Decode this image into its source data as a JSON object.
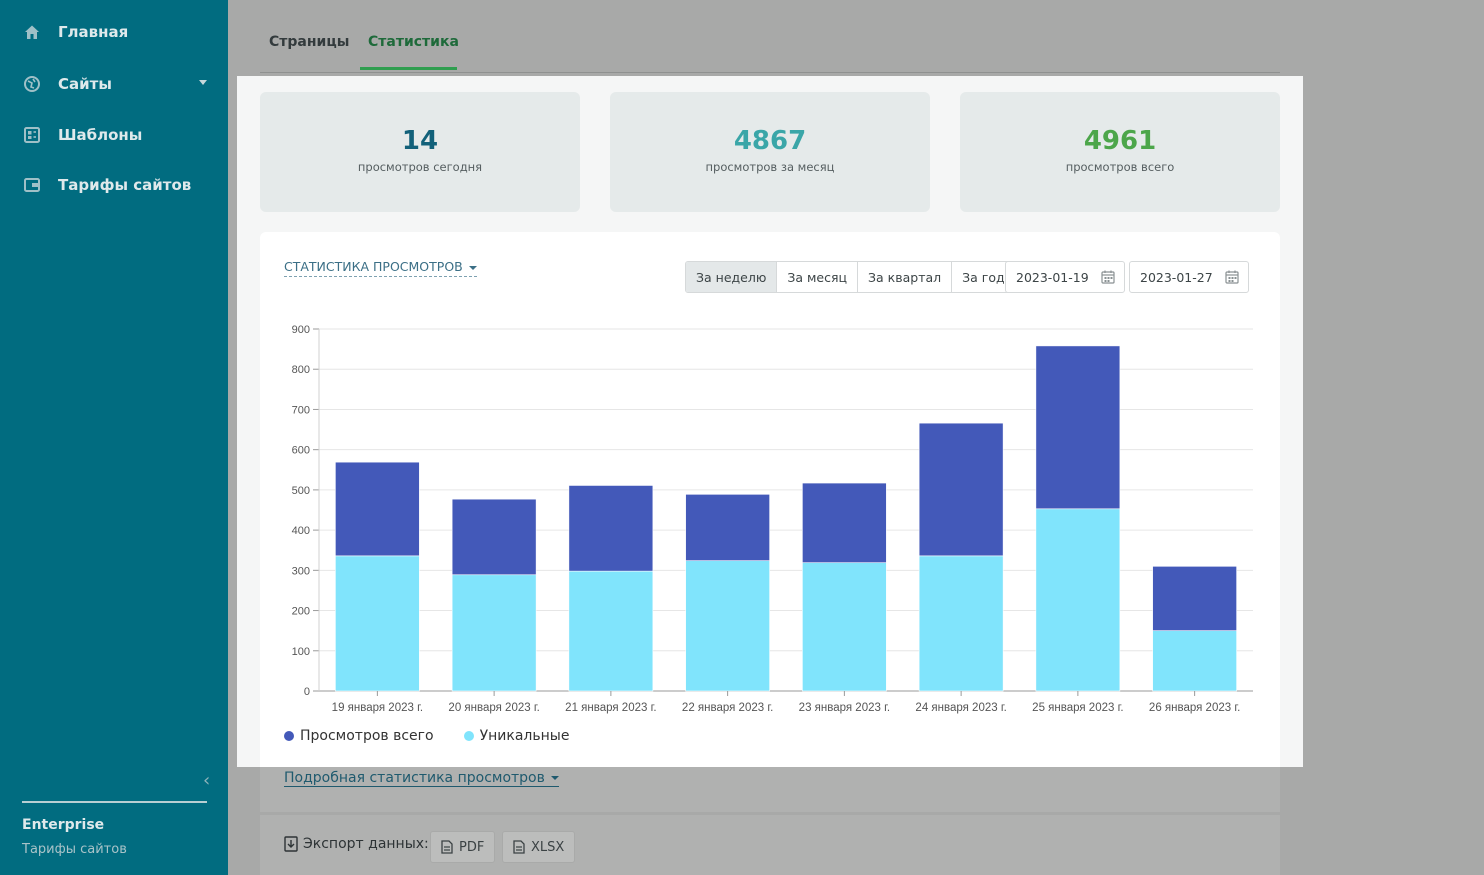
{
  "sidebar": {
    "items": [
      {
        "label": "Главная",
        "icon": "home-icon"
      },
      {
        "label": "Сайты",
        "icon": "globe-icon"
      },
      {
        "label": "Шаблоны",
        "icon": "template-icon"
      },
      {
        "label": "Тарифы сайтов",
        "icon": "wallet-icon"
      }
    ],
    "plan_name": "Enterprise",
    "plan_link": "Тарифы сайтов"
  },
  "tabs": [
    {
      "label": "Страницы",
      "active": false
    },
    {
      "label": "Статистика",
      "active": true
    }
  ],
  "stats": [
    {
      "value": "14",
      "label": "просмотров сегодня",
      "color": "#12617a"
    },
    {
      "value": "4867",
      "label": "просмотров за месяц",
      "color": "#3aa6a8"
    },
    {
      "value": "4961",
      "label": "просмотров всего",
      "color": "#4ca64a"
    }
  ],
  "chart_header": {
    "title": "СТАТИСТИКА ПРОСМОТРОВ",
    "periods": [
      {
        "label": "За неделю",
        "active": true
      },
      {
        "label": "За месяц",
        "active": false
      },
      {
        "label": "За квартал",
        "active": false
      },
      {
        "label": "За год",
        "active": false
      }
    ],
    "date_from": "2023-01-19",
    "date_to": "2023-01-27"
  },
  "chart_data": {
    "type": "bar",
    "stacked": true,
    "categories": [
      "19 января 2023 г.",
      "20 января 2023 г.",
      "21 января 2023 г.",
      "22 января 2023 г.",
      "23 января 2023 г.",
      "24 января 2023 г.",
      "25 января 2023 г.",
      "26 января 2023 г."
    ],
    "series": [
      {
        "name": "Уникальные",
        "color": "#80e4fc",
        "values": [
          336,
          289,
          298,
          324,
          319,
          336,
          453,
          150
        ]
      },
      {
        "name": "Просмотров всего",
        "color": "#4359b9",
        "values": [
          233,
          188,
          213,
          165,
          198,
          330,
          405,
          160
        ]
      }
    ],
    "yticks": [
      0,
      100,
      200,
      300,
      400,
      500,
      600,
      700,
      800,
      900
    ],
    "ylim": [
      0,
      900
    ],
    "grid": true,
    "legend_position": "bottom-left"
  },
  "legend": [
    {
      "label": "Просмотров всего",
      "color": "#4359b9"
    },
    {
      "label": "Уникальные",
      "color": "#80e4fc"
    }
  ],
  "detail_link": "Подробная статистика просмотров",
  "export": {
    "label": "Экспорт данных:",
    "buttons": [
      {
        "label": "PDF"
      },
      {
        "label": "XLSX"
      }
    ]
  }
}
